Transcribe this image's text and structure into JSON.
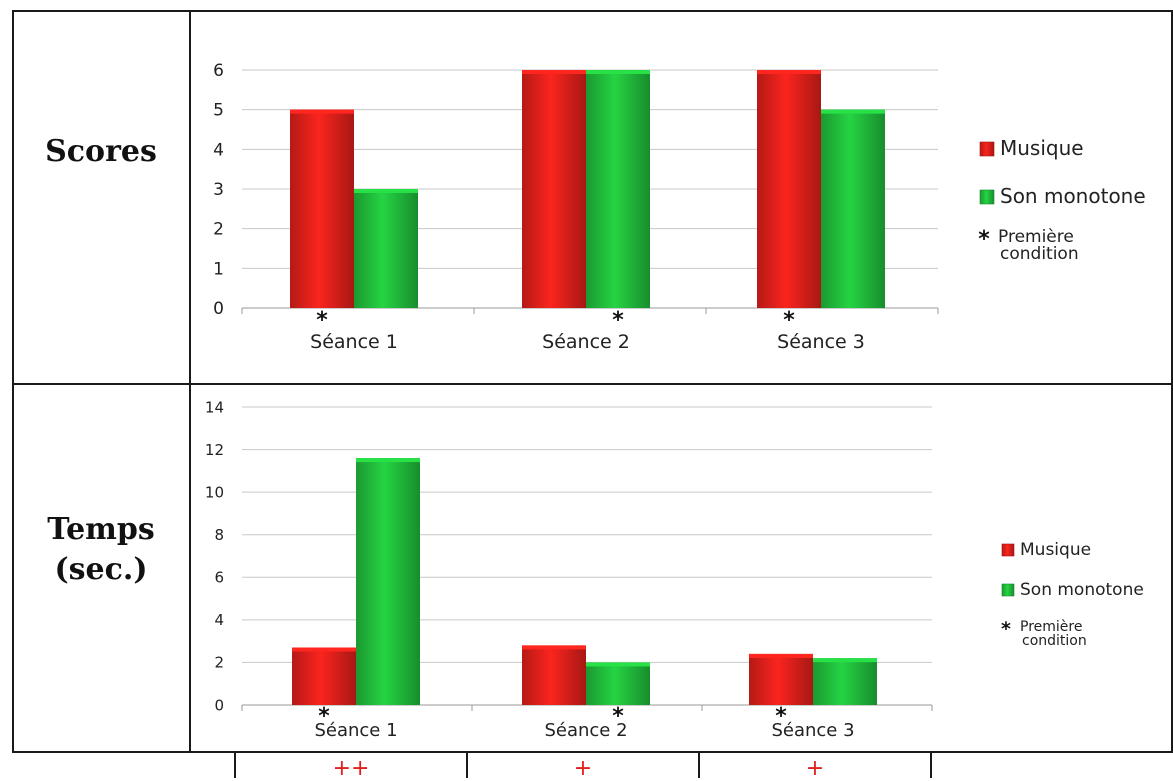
{
  "row_labels": {
    "scores": "Scores",
    "temps": "Temps\n(sec.)"
  },
  "legend": {
    "musique": "Musique",
    "son_monotone": "Son monotone",
    "premiere_star": "*",
    "premiere_line1": "Première",
    "premiere_line2": "condition"
  },
  "colors": {
    "musique": "#e8211c",
    "son_monotone": "#22c43e",
    "gridline": "#c8c8c8",
    "text": "#222222",
    "note": "#e0201c"
  },
  "bottom_notes": [
    "++",
    "+",
    "+"
  ],
  "chart_data": [
    {
      "type": "bar",
      "categories": [
        "Séance 1",
        "Séance 2",
        "Séance 3"
      ],
      "series": [
        {
          "name": "Musique",
          "values": [
            5,
            6,
            6
          ]
        },
        {
          "name": "Son monotone",
          "values": [
            3,
            6,
            5
          ]
        }
      ],
      "ylim": [
        0,
        6
      ],
      "yticks": [
        0,
        1,
        2,
        3,
        4,
        5,
        6
      ],
      "first_condition": [
        "Musique",
        "Son monotone",
        "Musique"
      ],
      "grid": true,
      "legend_position": "right"
    },
    {
      "type": "bar",
      "categories": [
        "Séance 1",
        "Séance 2",
        "Séance 3"
      ],
      "series": [
        {
          "name": "Musique",
          "values": [
            2.7,
            2.8,
            2.4
          ]
        },
        {
          "name": "Son monotone",
          "values": [
            11.6,
            2.0,
            2.2
          ]
        }
      ],
      "ylim": [
        0,
        14
      ],
      "yticks": [
        0,
        2,
        4,
        6,
        8,
        10,
        12,
        14
      ],
      "first_condition": [
        "Musique",
        "Son monotone",
        "Musique"
      ],
      "grid": true,
      "legend_position": "right"
    }
  ]
}
